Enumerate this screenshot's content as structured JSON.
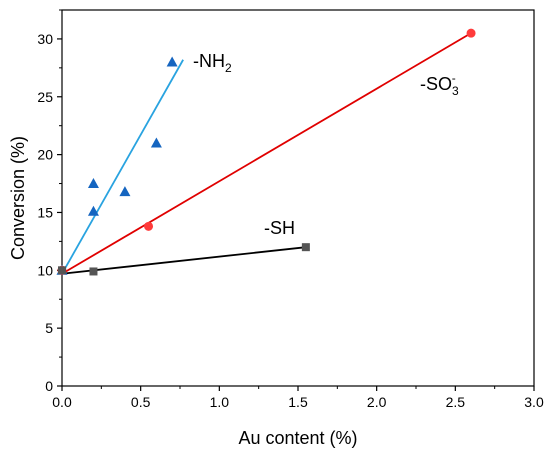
{
  "chart_data": {
    "type": "scatter",
    "xlabel": "Au content (%)",
    "ylabel": "Conversion (%)",
    "xlim": [
      0,
      3.0
    ],
    "ylim": [
      0,
      32.5
    ],
    "xticks": [
      0.0,
      0.5,
      1.0,
      1.5,
      2.0,
      2.5,
      3.0
    ],
    "xtick_labels": [
      "0.0",
      "0.5",
      "1.0",
      "1.5",
      "2.0",
      "2.5",
      "3.0"
    ],
    "yticks": [
      0,
      5,
      10,
      15,
      20,
      25,
      30
    ],
    "ytick_labels": [
      "0",
      "5",
      "10",
      "15",
      "20",
      "25",
      "30"
    ],
    "grid": false,
    "series": [
      {
        "name": "-NH2",
        "label_main": "-NH",
        "label_sub": "2",
        "label_sup": "",
        "marker": "triangle",
        "color": "#1565c0",
        "line_color": "#29a3e0",
        "points": [
          [
            0.0,
            10.0
          ],
          [
            0.2,
            17.5
          ],
          [
            0.2,
            15.1
          ],
          [
            0.4,
            16.8
          ],
          [
            0.6,
            21.0
          ],
          [
            0.7,
            28.0
          ]
        ],
        "fit": [
          [
            0.0,
            9.7
          ],
          [
            0.77,
            28.2
          ]
        ]
      },
      {
        "name": "-SO3-",
        "label_main": "-SO",
        "label_sub": "3",
        "label_sup": "-",
        "marker": "circle",
        "color": "#ff3b3b",
        "line_color": "#e00000",
        "points": [
          [
            0.0,
            10.0
          ],
          [
            0.55,
            13.8
          ],
          [
            2.6,
            30.5
          ]
        ],
        "fit": [
          [
            0.0,
            9.7
          ],
          [
            2.6,
            30.5
          ]
        ]
      },
      {
        "name": "-SH",
        "label_main": "-SH",
        "label_sub": "",
        "label_sup": "",
        "marker": "square",
        "color": "#555555",
        "line_color": "#000000",
        "points": [
          [
            0.0,
            10.0
          ],
          [
            0.2,
            9.9
          ],
          [
            1.55,
            12.0
          ]
        ],
        "fit": [
          [
            0.0,
            9.7
          ],
          [
            1.55,
            12.0
          ]
        ]
      }
    ]
  }
}
